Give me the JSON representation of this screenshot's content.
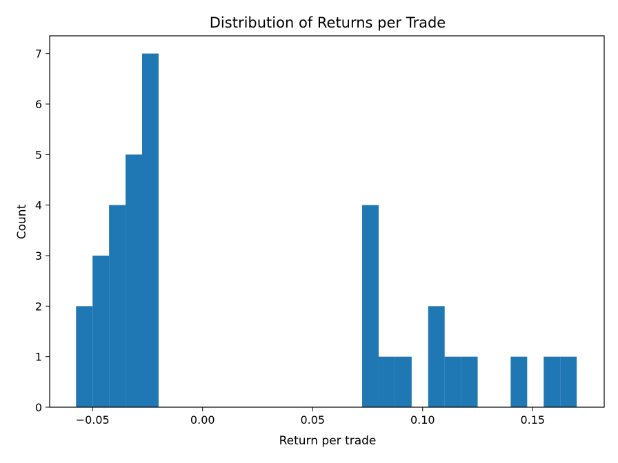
{
  "chart_data": {
    "type": "bar",
    "title": "Distribution of Returns per Trade",
    "xlabel": "Return per trade",
    "ylabel": "Count",
    "xlim": [
      -0.0695,
      0.1825
    ],
    "ylim": [
      0,
      7.35
    ],
    "bar_color": "#1f77b4",
    "bins": [
      {
        "start": -0.0575,
        "end": -0.05,
        "count": 2
      },
      {
        "start": -0.05,
        "end": -0.0425,
        "count": 3
      },
      {
        "start": -0.0425,
        "end": -0.035,
        "count": 4
      },
      {
        "start": -0.035,
        "end": -0.0275,
        "count": 5
      },
      {
        "start": -0.0275,
        "end": -0.02,
        "count": 7
      },
      {
        "start": 0.0725,
        "end": 0.08,
        "count": 4
      },
      {
        "start": 0.08,
        "end": 0.0875,
        "count": 1
      },
      {
        "start": 0.0875,
        "end": 0.095,
        "count": 1
      },
      {
        "start": 0.1025,
        "end": 0.11,
        "count": 2
      },
      {
        "start": 0.11,
        "end": 0.1175,
        "count": 1
      },
      {
        "start": 0.1175,
        "end": 0.125,
        "count": 1
      },
      {
        "start": 0.14,
        "end": 0.1475,
        "count": 1
      },
      {
        "start": 0.155,
        "end": 0.1625,
        "count": 1
      },
      {
        "start": 0.1625,
        "end": 0.17,
        "count": 1
      }
    ],
    "x_ticks": [
      {
        "value": -0.05,
        "label": "−0.05"
      },
      {
        "value": 0.0,
        "label": "0.00"
      },
      {
        "value": 0.05,
        "label": "0.05"
      },
      {
        "value": 0.1,
        "label": "0.10"
      },
      {
        "value": 0.15,
        "label": "0.15"
      }
    ],
    "y_ticks": [
      {
        "value": 0,
        "label": "0"
      },
      {
        "value": 1,
        "label": "1"
      },
      {
        "value": 2,
        "label": "2"
      },
      {
        "value": 3,
        "label": "3"
      },
      {
        "value": 4,
        "label": "4"
      },
      {
        "value": 5,
        "label": "5"
      },
      {
        "value": 6,
        "label": "6"
      },
      {
        "value": 7,
        "label": "7"
      }
    ],
    "grid": false,
    "legend": "none"
  }
}
